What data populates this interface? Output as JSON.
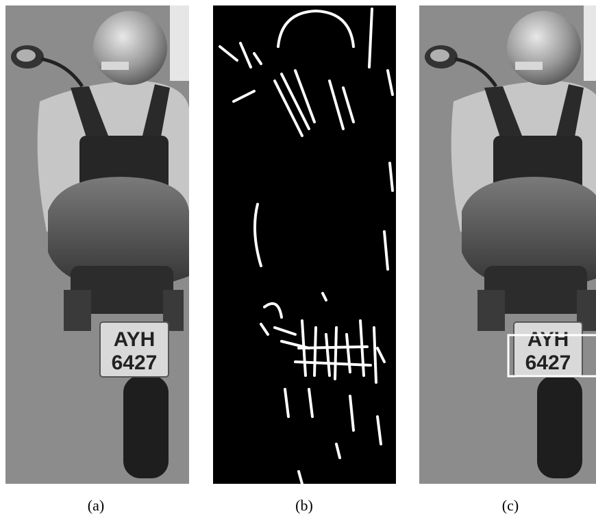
{
  "figure": {
    "panels": [
      {
        "caption": "(a)",
        "plate_line1": "AYH",
        "plate_line2": "6427"
      },
      {
        "caption": "(b)"
      },
      {
        "caption": "(c)",
        "plate_line1": "AYH",
        "plate_line2": "6427"
      }
    ]
  }
}
